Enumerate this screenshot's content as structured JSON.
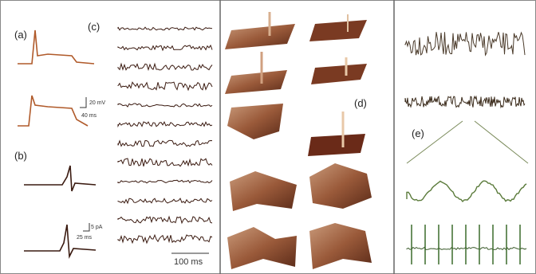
{
  "panels": [
    {
      "label": "(a)"
    },
    {
      "label": "(b)"
    },
    {
      "label": "(c)"
    },
    {
      "label": "(d)"
    },
    {
      "label": "(e)"
    }
  ],
  "scale_bars": [
    {
      "label": "20 mV"
    },
    {
      "label": "40 ms"
    },
    {
      "label": "5 pA"
    },
    {
      "label": "25 ms"
    },
    {
      "label": "100 ms"
    }
  ]
}
